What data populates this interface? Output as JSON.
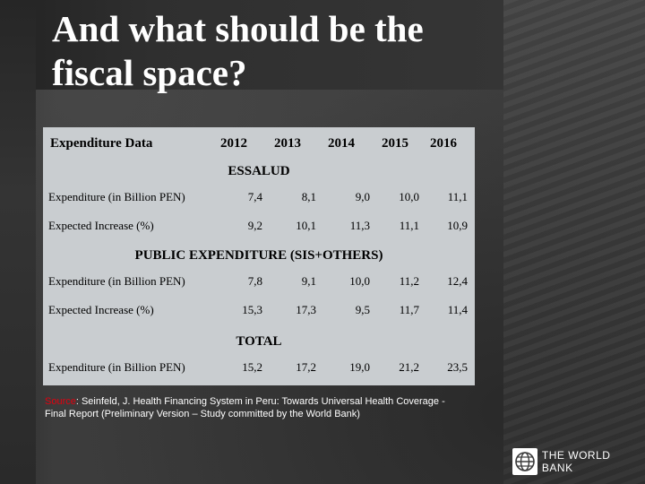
{
  "slide": {
    "title": "And what should be the fiscal space?"
  },
  "table": {
    "header": {
      "label": "Expenditure Data",
      "years": [
        "2012",
        "2013",
        "2014",
        "2015",
        "2016"
      ]
    },
    "sections": [
      {
        "title": "ESSALUD",
        "rows": [
          {
            "label": "Expenditure (in Billion PEN)",
            "values": [
              "7,4",
              "8,1",
              "9,0",
              "10,0",
              "11,1"
            ]
          },
          {
            "label": "Expected Increase (%)",
            "values": [
              "9,2",
              "10,1",
              "11,3",
              "11,1",
              "10,9"
            ]
          }
        ]
      },
      {
        "title": "PUBLIC EXPENDITURE (SIS+OTHERS)",
        "rows": [
          {
            "label": "Expenditure (in Billion PEN)",
            "values": [
              "7,8",
              "9,1",
              "10,0",
              "11,2",
              "12,4"
            ]
          },
          {
            "label": "Expected Increase (%)",
            "values": [
              "15,3",
              "17,3",
              "9,5",
              "11,7",
              "11,4"
            ]
          }
        ]
      },
      {
        "title": "TOTAL",
        "rows": [
          {
            "label": "Expenditure (in Billion PEN)",
            "values": [
              "15,2",
              "17,2",
              "19,0",
              "21,2",
              "23,5"
            ]
          }
        ]
      }
    ]
  },
  "source": {
    "label": "Source",
    "text": ": Seinfeld, J. Health Financing System in Peru:  Towards Universal Health Coverage - Final Report (Preliminary Version – Study committed by the World Bank)"
  },
  "logo": {
    "icon": "globe-icon",
    "text": "THE WORLD BANK"
  },
  "colors": {
    "background": "#3a3a3a",
    "table_fill": "#c9cdd0",
    "source_label": "#e2000f"
  }
}
